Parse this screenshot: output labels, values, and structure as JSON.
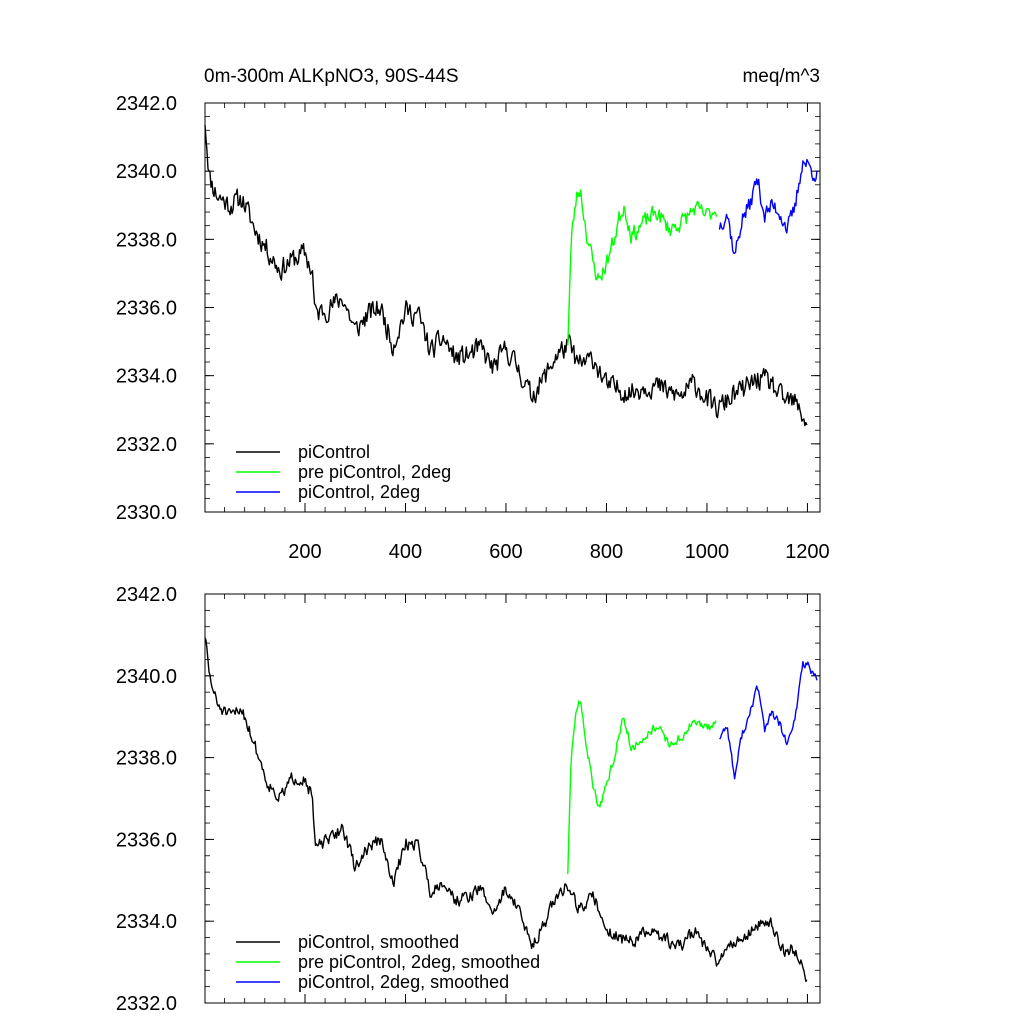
{
  "chart_data": [
    {
      "type": "line",
      "title_left": "0m-300m ALKpNO3, 90S-44S",
      "title_right": "meq/m^3",
      "xlabel": "",
      "ylabel": "",
      "xlim": [
        1,
        1225
      ],
      "ylim": [
        2330,
        2342
      ],
      "xticks": [
        200,
        400,
        600,
        800,
        1000,
        1200
      ],
      "xtick_labels": [
        "200",
        "400",
        "600",
        "800",
        "1000",
        "1200"
      ],
      "yticks": [
        2330,
        2332,
        2334,
        2336,
        2338,
        2340,
        2342
      ],
      "ytick_labels": [
        "2330.0",
        "2332.0",
        "2334.0",
        "2336.0",
        "2338.0",
        "2340.0",
        "2342.0"
      ],
      "legend_position": "bottom-left",
      "series": [
        {
          "name": "piControl",
          "color": "#000000",
          "noise": 0.45,
          "seed": 11,
          "x": [
            1,
            10,
            25,
            50,
            75,
            100,
            125,
            150,
            175,
            200,
            215,
            220,
            250,
            275,
            300,
            325,
            350,
            375,
            400,
            425,
            450,
            475,
            500,
            525,
            550,
            575,
            600,
            625,
            650,
            675,
            700,
            725,
            745,
            775,
            800,
            825,
            850,
            875,
            900,
            925,
            950,
            975,
            1000,
            1020,
            1050,
            1075,
            1100,
            1125,
            1150,
            1175,
            1200
          ],
          "y": [
            2341.5,
            2339.8,
            2339.3,
            2339.0,
            2339.2,
            2338.3,
            2337.7,
            2337.1,
            2337.4,
            2337.6,
            2337.0,
            2335.8,
            2336.0,
            2336.3,
            2335.3,
            2335.8,
            2336.0,
            2334.9,
            2335.9,
            2335.8,
            2334.7,
            2335.1,
            2334.5,
            2334.6,
            2334.8,
            2334.2,
            2334.8,
            2334.2,
            2333.4,
            2333.9,
            2334.6,
            2334.9,
            2334.3,
            2334.5,
            2333.7,
            2333.6,
            2333.5,
            2333.7,
            2333.7,
            2333.5,
            2333.4,
            2333.8,
            2333.3,
            2333.0,
            2333.4,
            2333.6,
            2333.9,
            2333.8,
            2333.3,
            2333.2,
            2332.6
          ]
        },
        {
          "name": "pre piControl, 2deg",
          "color": "#00ff00",
          "noise": 0.35,
          "seed": 23,
          "x": [
            723,
            730,
            740,
            748,
            760,
            775,
            785,
            800,
            815,
            825,
            835,
            850,
            875,
            900,
            925,
            950,
            975,
            1000,
            1020
          ],
          "y": [
            2335.0,
            2338.0,
            2339.2,
            2339.5,
            2338.2,
            2337.2,
            2336.8,
            2337.3,
            2338.0,
            2338.6,
            2339.0,
            2338.1,
            2338.5,
            2338.8,
            2338.3,
            2338.5,
            2338.9,
            2338.7,
            2338.9
          ]
        },
        {
          "name": "piControl, 2deg",
          "color": "#0000ff",
          "noise": 0.35,
          "seed": 37,
          "x": [
            1025,
            1040,
            1055,
            1070,
            1085,
            1100,
            1115,
            1130,
            1145,
            1160,
            1175,
            1190,
            1200,
            1210,
            1220
          ],
          "y": [
            2338.4,
            2338.8,
            2337.5,
            2338.6,
            2339.0,
            2339.8,
            2338.7,
            2339.0,
            2338.8,
            2338.3,
            2338.9,
            2340.3,
            2340.2,
            2340.0,
            2339.9
          ]
        }
      ]
    },
    {
      "type": "line",
      "xlabel": "",
      "ylabel": "",
      "xlim": [
        1,
        1225
      ],
      "ylim": [
        2332,
        2342
      ],
      "xticks": [
        200,
        400,
        600,
        800,
        1000,
        1200
      ],
      "yticks": [
        2332,
        2334,
        2336,
        2338,
        2340,
        2342
      ],
      "ytick_labels": [
        "2332.0",
        "2334.0",
        "2336.0",
        "2338.0",
        "2340.0",
        "2342.0"
      ],
      "legend_position": "bottom-left",
      "series": [
        {
          "name": "piControl, smoothed",
          "color": "#000000",
          "noise": 0.22,
          "seed": 51,
          "x": [
            1,
            10,
            25,
            50,
            75,
            100,
            125,
            150,
            175,
            200,
            215,
            220,
            250,
            275,
            300,
            325,
            350,
            375,
            400,
            425,
            450,
            475,
            500,
            525,
            550,
            575,
            600,
            625,
            650,
            675,
            700,
            725,
            745,
            775,
            800,
            825,
            850,
            875,
            900,
            925,
            950,
            975,
            1000,
            1020,
            1050,
            1075,
            1100,
            1125,
            1150,
            1175,
            1200
          ],
          "y": [
            2341.0,
            2340.0,
            2339.3,
            2339.0,
            2339.2,
            2338.3,
            2337.4,
            2337.0,
            2337.5,
            2337.5,
            2337.0,
            2335.8,
            2336.0,
            2336.3,
            2335.3,
            2335.8,
            2336.0,
            2334.9,
            2335.9,
            2335.9,
            2334.7,
            2335.0,
            2334.5,
            2334.6,
            2334.8,
            2334.2,
            2334.8,
            2334.3,
            2333.4,
            2333.9,
            2334.6,
            2334.9,
            2334.3,
            2334.6,
            2333.8,
            2333.6,
            2333.5,
            2333.7,
            2333.7,
            2333.5,
            2333.4,
            2333.8,
            2333.3,
            2333.0,
            2333.5,
            2333.6,
            2333.9,
            2334.0,
            2333.3,
            2333.3,
            2332.6
          ]
        },
        {
          "name": "pre piControl, 2deg, smoothed",
          "color": "#00ff00",
          "noise": 0.15,
          "seed": 63,
          "x": [
            723,
            730,
            740,
            748,
            760,
            775,
            785,
            800,
            815,
            825,
            835,
            850,
            875,
            900,
            925,
            950,
            975,
            1000,
            1020
          ],
          "y": [
            2335.2,
            2338.0,
            2339.2,
            2339.4,
            2338.3,
            2337.2,
            2336.8,
            2337.3,
            2338.0,
            2338.6,
            2339.0,
            2338.2,
            2338.5,
            2338.8,
            2338.3,
            2338.5,
            2338.9,
            2338.7,
            2338.9
          ]
        },
        {
          "name": "piControl, 2deg, smoothed",
          "color": "#0000ff",
          "noise": 0.15,
          "seed": 77,
          "x": [
            1025,
            1040,
            1055,
            1070,
            1085,
            1100,
            1115,
            1130,
            1145,
            1160,
            1175,
            1190,
            1200,
            1210,
            1220
          ],
          "y": [
            2338.5,
            2338.8,
            2337.5,
            2338.6,
            2339.0,
            2339.8,
            2338.7,
            2339.1,
            2338.8,
            2338.3,
            2338.9,
            2340.3,
            2340.3,
            2340.0,
            2339.9
          ]
        }
      ]
    }
  ]
}
